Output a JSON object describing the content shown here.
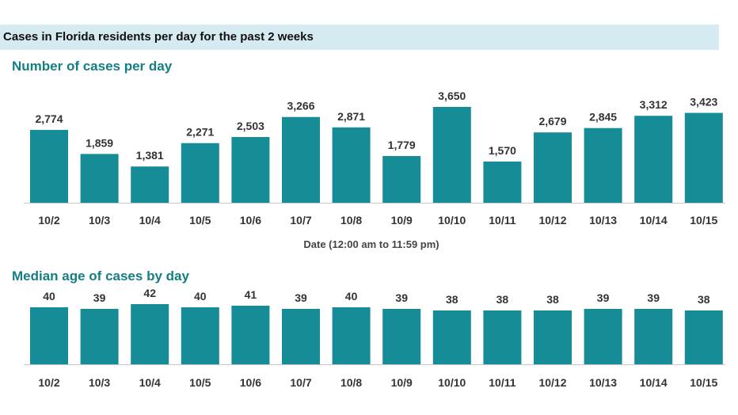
{
  "header": {
    "title": "Cases in Florida residents per day for the past 2 weeks"
  },
  "colors": {
    "bar": "#168c97",
    "title": "#157d84",
    "banner_bg": "#d6eaf2"
  },
  "chart_data": [
    {
      "type": "bar",
      "title": "Number of cases per day",
      "xlabel": "Date (12:00 am to 11:59 pm)",
      "ylabel": "",
      "categories": [
        "10/2",
        "10/3",
        "10/4",
        "10/5",
        "10/6",
        "10/7",
        "10/8",
        "10/9",
        "10/10",
        "10/11",
        "10/12",
        "10/13",
        "10/14",
        "10/15"
      ],
      "values": [
        2774,
        1859,
        1381,
        2271,
        2503,
        3266,
        2871,
        1779,
        3650,
        1570,
        2679,
        2845,
        3312,
        3423
      ],
      "value_labels": [
        "2,774",
        "1,859",
        "1,381",
        "2,271",
        "2,503",
        "3,266",
        "2,871",
        "1,779",
        "3,650",
        "1,570",
        "2,679",
        "2,845",
        "3,312",
        "3,423"
      ],
      "ylim": [
        0,
        3650
      ],
      "grid": false,
      "legend": "none"
    },
    {
      "type": "bar",
      "title": "Median age of cases by day",
      "xlabel": "",
      "ylabel": "",
      "categories": [
        "10/2",
        "10/3",
        "10/4",
        "10/5",
        "10/6",
        "10/7",
        "10/8",
        "10/9",
        "10/10",
        "10/11",
        "10/12",
        "10/13",
        "10/14",
        "10/15"
      ],
      "values": [
        40,
        39,
        42,
        40,
        41,
        39,
        40,
        39,
        38,
        38,
        38,
        39,
        39,
        38
      ],
      "value_labels": [
        "40",
        "39",
        "42",
        "40",
        "41",
        "39",
        "40",
        "39",
        "38",
        "38",
        "38",
        "39",
        "39",
        "38"
      ],
      "ylim": [
        0,
        42
      ],
      "grid": false,
      "legend": "none"
    }
  ]
}
